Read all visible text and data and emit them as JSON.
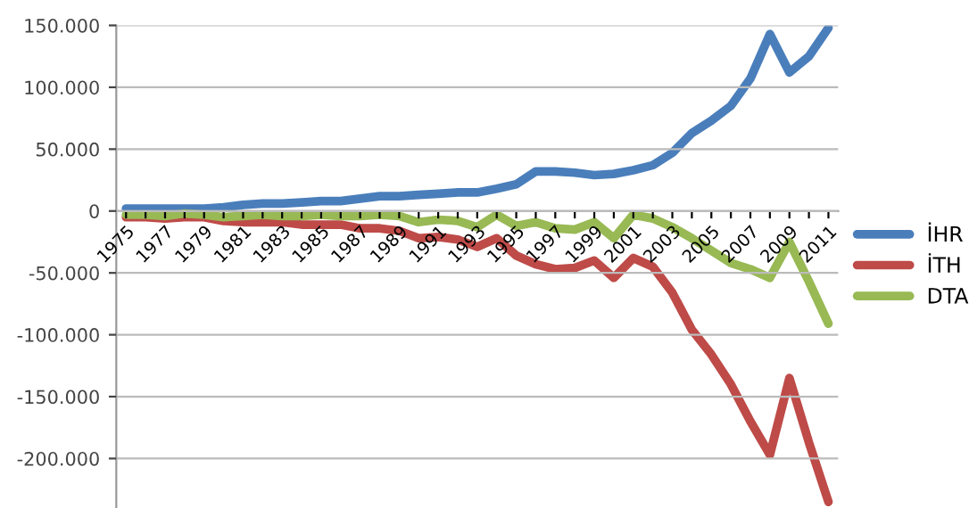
{
  "chart_data": {
    "type": "line",
    "categories": [
      "1975",
      null,
      "1977",
      null,
      "1979",
      null,
      "1981",
      null,
      "1983",
      null,
      "1985",
      null,
      "1987",
      null,
      "1989",
      null,
      "1991",
      null,
      "1993",
      null,
      "1995",
      null,
      "1997",
      null,
      "1999",
      null,
      "2001",
      null,
      "2003",
      null,
      "2005",
      null,
      "2007",
      null,
      "2009",
      null,
      "2011"
    ],
    "series": [
      {
        "name": "İHR",
        "color": "#4a7ebb",
        "values": [
          2000,
          2000,
          2000,
          2000,
          2000,
          3000,
          5000,
          6000,
          6000,
          7000,
          8000,
          8000,
          10000,
          12000,
          12000,
          13000,
          14000,
          15000,
          15000,
          18000,
          21600,
          32000,
          32000,
          31000,
          29000,
          30000,
          33000,
          37000,
          47000,
          63000,
          73000,
          85000,
          107000,
          143000,
          112000,
          125000,
          148000
        ]
      },
      {
        "name": "İTH",
        "color": "#be4b48",
        "values": [
          -5000,
          -5000,
          -6000,
          -5000,
          -5000,
          -8000,
          -9000,
          -9000,
          -9000,
          -11000,
          -11000,
          -11000,
          -14000,
          -14000,
          -16000,
          -22000,
          -21000,
          -23000,
          -29000,
          -22000,
          -36000,
          -43000,
          -47000,
          -46000,
          -40000,
          -54000,
          -38000,
          -45000,
          -66000,
          -96000,
          -116000,
          -140000,
          -170000,
          -197000,
          -135000,
          -187000,
          -235000
        ]
      },
      {
        "name": "DTA",
        "color": "#98b954",
        "values": [
          -3000,
          -3000,
          -4000,
          -2000,
          -3000,
          -5000,
          -4000,
          -3000,
          -4000,
          -4000,
          -3000,
          -4000,
          -4000,
          -3000,
          -4000,
          -9000,
          -7000,
          -8000,
          -13000,
          -3000,
          -12000,
          -9000,
          -14000,
          -15000,
          -9000,
          -22000,
          -3000,
          -6000,
          -13000,
          -22000,
          -32000,
          -42000,
          -47000,
          -54000,
          -25000,
          -57000,
          -91000
        ]
      }
    ],
    "ylim": [
      -240000,
      150000
    ],
    "yticks": [
      {
        "value": -200000,
        "label": "-200.000"
      },
      {
        "value": -150000,
        "label": "-150.000"
      },
      {
        "value": -100000,
        "label": "-100.000"
      },
      {
        "value": -50000,
        "label": "-50.000"
      },
      0,
      {
        "value": 50000,
        "label": "50.000"
      },
      {
        "value": 100000,
        "label": "100.000"
      },
      {
        "value": 150000,
        "label": "150.000"
      }
    ],
    "grid": "y",
    "legend": "right",
    "marker": "none",
    "line_style": "solid"
  }
}
